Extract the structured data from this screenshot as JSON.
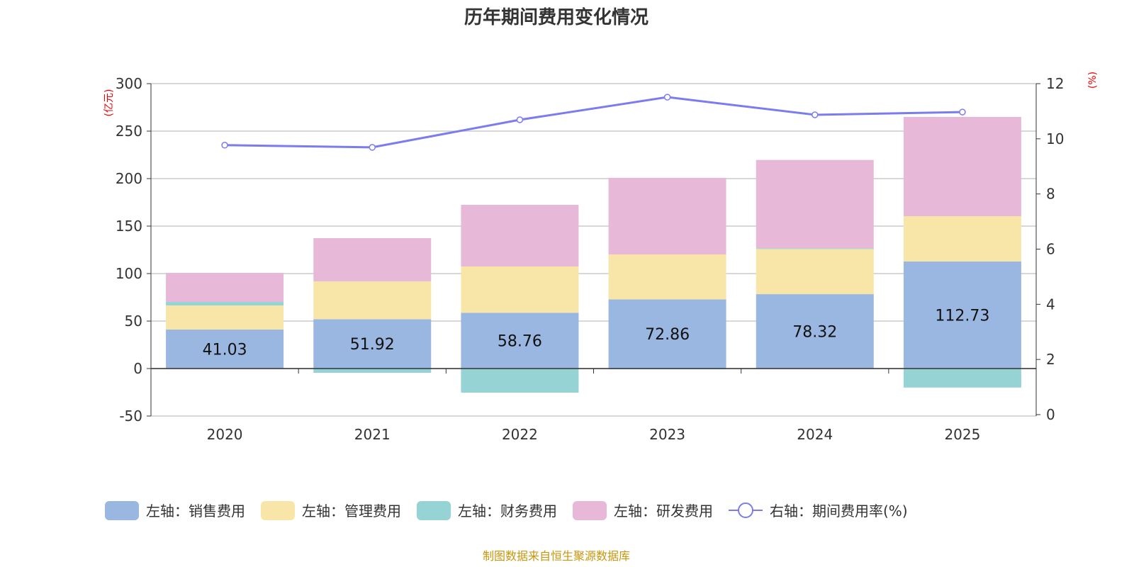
{
  "chart_data": {
    "type": "bar",
    "title": "历年期间费用变化情况",
    "categories": [
      "2020",
      "2021",
      "2022",
      "2023",
      "2024",
      "2025"
    ],
    "left_axis": {
      "unit": "(亿元)",
      "ylim": [
        -50,
        300
      ],
      "ticks": [
        -50,
        0,
        50,
        100,
        150,
        200,
        250,
        300
      ]
    },
    "right_axis": {
      "unit": "(%)",
      "ylim": [
        0,
        12
      ],
      "ticks": [
        0,
        2,
        4,
        6,
        8,
        10,
        12
      ]
    },
    "grid": true,
    "legend_placement": "bottom",
    "series": [
      {
        "name": "左轴：销售费用",
        "type": "bar",
        "stack": true,
        "color": "#9ab7e1",
        "values": [
          41.03,
          51.92,
          58.76,
          72.86,
          78.32,
          112.73
        ],
        "labels_shown": true
      },
      {
        "name": "左轴：管理费用",
        "type": "bar",
        "stack": true,
        "color": "#f8e6a8",
        "values": [
          25.4,
          39.9,
          48.7,
          47.3,
          47.8,
          47.7
        ]
      },
      {
        "name": "左轴：财务费用",
        "type": "bar",
        "stack": true,
        "color": "#96d3d4",
        "values": [
          3.7,
          -4.5,
          -25.4,
          -0.5,
          0.5,
          -20.0
        ]
      },
      {
        "name": "左轴：研发费用",
        "type": "bar",
        "stack": true,
        "color": "#e8b8d9",
        "values": [
          30.6,
          45.5,
          64.9,
          80.6,
          93.0,
          104.5
        ]
      },
      {
        "name": "右轴：期间费用率(%)",
        "type": "line",
        "axis": "right",
        "color": "#7b7cf0",
        "values": [
          9.77,
          9.69,
          10.69,
          11.51,
          10.87,
          10.97
        ]
      }
    ]
  },
  "source": "制图数据来自恒生聚源数据库"
}
